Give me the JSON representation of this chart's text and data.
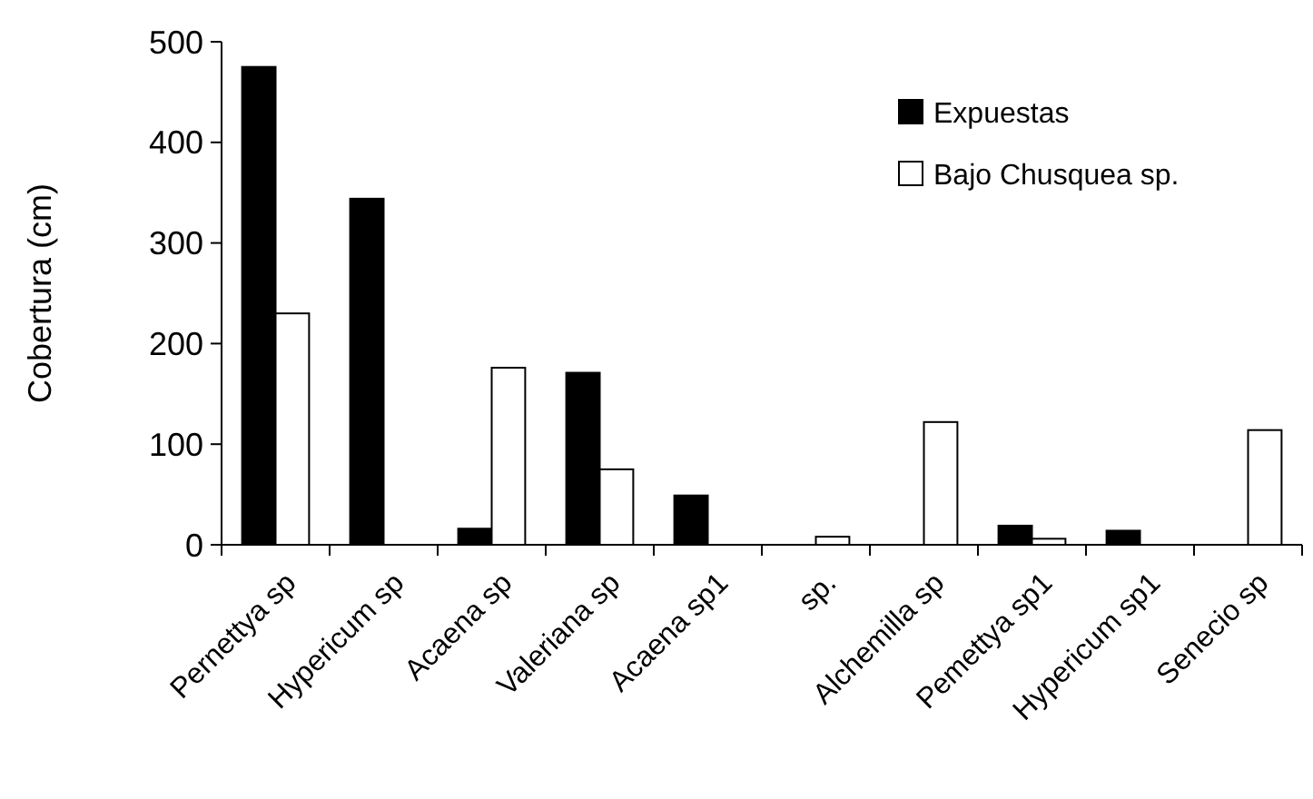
{
  "chart_data": {
    "type": "bar",
    "ylabel": "Cobertura (cm)",
    "categories": [
      "Pernettya sp",
      "Hypericum sp",
      "Acaena sp",
      "Valeriana sp",
      "Acaena sp1",
      "sp.",
      "Alchemilla sp",
      "Pemettya sp1",
      "Hypericum sp1",
      "Senecio sp"
    ],
    "series": [
      {
        "name": "Expuestas",
        "color": "#000000",
        "values": [
          475,
          344,
          16,
          171,
          49,
          0,
          0,
          19,
          14,
          0
        ]
      },
      {
        "name": "Bajo Chusquea sp.",
        "color": "#ffffff",
        "values": [
          230,
          0,
          176,
          75,
          0,
          8,
          122,
          6,
          0,
          114
        ]
      }
    ],
    "ylim": [
      0,
      500
    ],
    "yticks": [
      0,
      100,
      200,
      300,
      400,
      500
    ],
    "legend": "top right"
  }
}
